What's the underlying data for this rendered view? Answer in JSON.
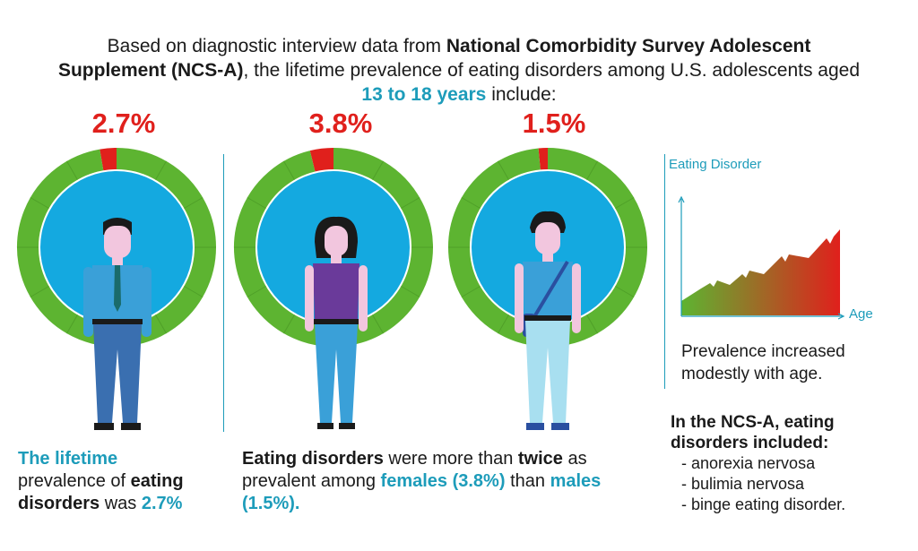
{
  "header": {
    "p1": "Based on diagnostic interview data from ",
    "b1": "National Comorbidity Survey Adolescent Supplement (NCS-A)",
    "p2": ", the lifetime prevalence of eating disorders among U.S. adolescents aged ",
    "b2": "13 to 18 years",
    "p3": " include:"
  },
  "chart_data": [
    {
      "type": "pie",
      "subtype": "donut",
      "title": "2.7%",
      "slices": [
        {
          "label": "eating disorders",
          "value": 2.7,
          "color": "#e0201c"
        },
        {
          "label": "",
          "value": 97.3,
          "color": "#5db431"
        }
      ],
      "figure": "adolescent (overall)"
    },
    {
      "type": "pie",
      "subtype": "donut",
      "title": "3.8%",
      "slices": [
        {
          "label": "eating disorders",
          "value": 3.8,
          "color": "#e0201c"
        },
        {
          "label": "",
          "value": 96.2,
          "color": "#5db431"
        }
      ],
      "figure": "female"
    },
    {
      "type": "pie",
      "subtype": "donut",
      "title": "1.5%",
      "slices": [
        {
          "label": "eating disorders",
          "value": 1.5,
          "color": "#e0201c"
        },
        {
          "label": "",
          "value": 98.5,
          "color": "#5db431"
        }
      ],
      "figure": "male"
    },
    {
      "type": "area",
      "title": "",
      "ylabel": "Eating Disorder",
      "xlabel": "Age",
      "trend": "increasing",
      "gradient": [
        "#5db431",
        "#e0201c"
      ]
    }
  ],
  "captions": {
    "left": {
      "t1": "The lifetime",
      "t2": "prevalence of ",
      "t3": "eating",
      "t4": "disorders",
      "t5": " was ",
      "t6": "2.7%"
    },
    "middle": {
      "t1": "Eating disorders",
      "t2": " were more than ",
      "t3": "twice",
      "t4": " as prevalent among ",
      "t5": "females (3.8%)",
      "t6": " than ",
      "t7": "males (1.5%)."
    }
  },
  "trend_note": "Prevalence increased modestly with age.",
  "list": {
    "title": "In the NCS-A, eating disorders included:",
    "items": [
      "- anorexia nervosa",
      "- bulimia nervosa",
      "- binge eating disorder."
    ]
  },
  "colors": {
    "accent": "#1d9cba",
    "red": "#e0201c",
    "green": "#5db431",
    "circle": "#14a9e0"
  }
}
